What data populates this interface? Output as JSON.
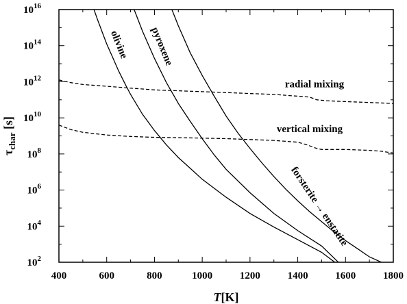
{
  "chart_data": {
    "type": "line",
    "title": "",
    "xlabel": {
      "main": "T",
      "unit": "[K]"
    },
    "ylabel": {
      "main": "τ",
      "sub": "char",
      "unit": " [s]"
    },
    "xlim": [
      400,
      1800
    ],
    "ylim_log10": [
      2,
      16
    ],
    "y_log_scale": true,
    "grid": false,
    "x_ticks": [
      400,
      600,
      800,
      1000,
      1200,
      1400,
      1600,
      1800
    ],
    "x_tick_labels": [
      "400",
      "600",
      "800",
      "1000",
      "1200",
      "1400",
      "1600",
      "1800"
    ],
    "y_tick_exponents": [
      2,
      4,
      6,
      8,
      10,
      12,
      14,
      16
    ],
    "y_tick_base": "10",
    "series": [
      {
        "name": "olivine",
        "style": "solid",
        "x": [
          547,
          560,
          580,
          600,
          620,
          650,
          680,
          700,
          750,
          800,
          850,
          900,
          950,
          1000,
          1100,
          1200,
          1300,
          1400,
          1500,
          1555
        ],
        "log10_y": [
          16.0,
          15.5,
          14.8,
          14.1,
          13.5,
          12.6,
          11.8,
          11.3,
          10.2,
          9.3,
          8.5,
          7.8,
          7.2,
          6.6,
          5.6,
          4.7,
          3.95,
          3.25,
          2.55,
          2.0
        ]
      },
      {
        "name": "pyroxene",
        "style": "solid",
        "x": [
          715,
          750,
          800,
          850,
          900,
          950,
          1000,
          1050,
          1100,
          1200,
          1300,
          1400,
          1500,
          1570
        ],
        "log10_y": [
          16.0,
          14.8,
          13.3,
          11.95,
          10.8,
          9.8,
          8.85,
          7.95,
          7.15,
          5.85,
          4.7,
          3.75,
          2.9,
          2.0
        ]
      },
      {
        "name": "forsterite → enstatite",
        "style": "solid",
        "x": [
          873,
          900,
          950,
          1000,
          1050,
          1100,
          1150,
          1200,
          1250,
          1300,
          1350,
          1400,
          1450,
          1500,
          1550,
          1600,
          1650,
          1700,
          1750
        ],
        "log10_y": [
          16.0,
          15.1,
          13.6,
          12.35,
          11.2,
          10.1,
          9.15,
          8.3,
          7.5,
          6.75,
          6.05,
          5.4,
          4.8,
          4.25,
          3.7,
          3.2,
          2.75,
          2.3,
          2.0
        ]
      },
      {
        "name": "radial mixing",
        "style": "dashed",
        "x": [
          400,
          450,
          500,
          600,
          700,
          800,
          900,
          1000,
          1100,
          1200,
          1300,
          1400,
          1450,
          1480,
          1520,
          1600,
          1700,
          1800
        ],
        "log10_y": [
          12.1,
          11.95,
          11.85,
          11.75,
          11.65,
          11.55,
          11.5,
          11.45,
          11.4,
          11.35,
          11.3,
          11.2,
          11.15,
          11.0,
          10.95,
          10.9,
          10.85,
          10.8
        ]
      },
      {
        "name": "vertical mixing",
        "style": "dashed",
        "x": [
          400,
          450,
          500,
          600,
          700,
          800,
          900,
          1000,
          1100,
          1200,
          1300,
          1400,
          1440,
          1460,
          1480,
          1500,
          1550,
          1600,
          1700,
          1750,
          1800
        ],
        "log10_y": [
          9.6,
          9.35,
          9.2,
          9.05,
          8.97,
          8.92,
          8.9,
          8.88,
          8.85,
          8.8,
          8.75,
          8.65,
          8.5,
          8.4,
          8.3,
          8.25,
          8.25,
          8.25,
          8.2,
          8.15,
          8.05
        ]
      }
    ],
    "annotations": [
      {
        "text": "olivine",
        "x": 640,
        "log10_y": 14.0,
        "rotate": 68
      },
      {
        "text": "pyroxene",
        "x": 820,
        "log10_y": 13.9,
        "rotate": 68
      },
      {
        "text": "forsterite → enstatite",
        "x": 1480,
        "log10_y": 5.0,
        "rotate": 56
      },
      {
        "text": "radial mixing",
        "x": 1470,
        "log10_y": 11.7,
        "rotate": 0
      },
      {
        "text": "vertical mixing",
        "x": 1450,
        "log10_y": 9.2,
        "rotate": 0
      }
    ]
  }
}
